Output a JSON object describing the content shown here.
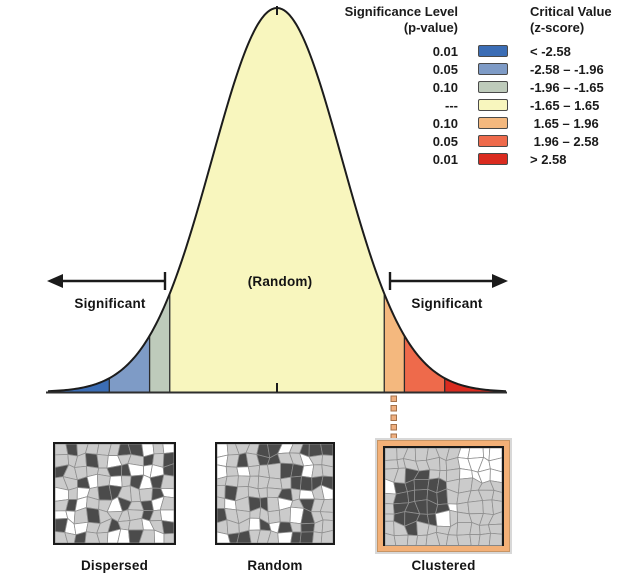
{
  "diagram": {
    "legend": {
      "significance_header": "Significance Level",
      "significance_subheader": "(p-value)",
      "critical_header": "Critical Value",
      "critical_subheader": "(z-score)",
      "rows": [
        {
          "p_value": "0.01",
          "z_range": "< -2.58",
          "color": "#3b6db5"
        },
        {
          "p_value": "0.05",
          "z_range": "-2.58 – -1.96",
          "color": "#7e9bc6"
        },
        {
          "p_value": "0.10",
          "z_range": "-1.96 – -1.65",
          "color": "#becbbb"
        },
        {
          "p_value": "---",
          "z_range": "-1.65 – 1.65",
          "color": "#f8f6be"
        },
        {
          "p_value": "0.10",
          "z_range": " 1.65 – 1.96",
          "color": "#f4b87e"
        },
        {
          "p_value": "0.05",
          "z_range": " 1.96 – 2.58",
          "color": "#ee6a4b"
        },
        {
          "p_value": "0.01",
          "z_range": "> 2.58",
          "color": "#da2b1f"
        }
      ]
    },
    "curve": {
      "center_label": "(Random)",
      "left_tail_label": "Significant",
      "right_tail_label": "Significant",
      "boundaries_z": [
        -2.58,
        -1.96,
        -1.65,
        1.65,
        1.96,
        2.58
      ]
    },
    "maps": [
      {
        "label": "Dispersed",
        "pattern": "dispersed",
        "highlighted": false
      },
      {
        "label": "Random",
        "pattern": "random",
        "highlighted": false
      },
      {
        "label": "Clustered",
        "pattern": "clustered",
        "highlighted": true
      }
    ],
    "map_colors": {
      "dark": "#4b4b4b",
      "light": "#cbcbcb",
      "white": "#ffffff"
    },
    "connector_color": "#efb080",
    "connector_border_color": "#a4714a",
    "highlight_frame_color": "#f3b077"
  }
}
